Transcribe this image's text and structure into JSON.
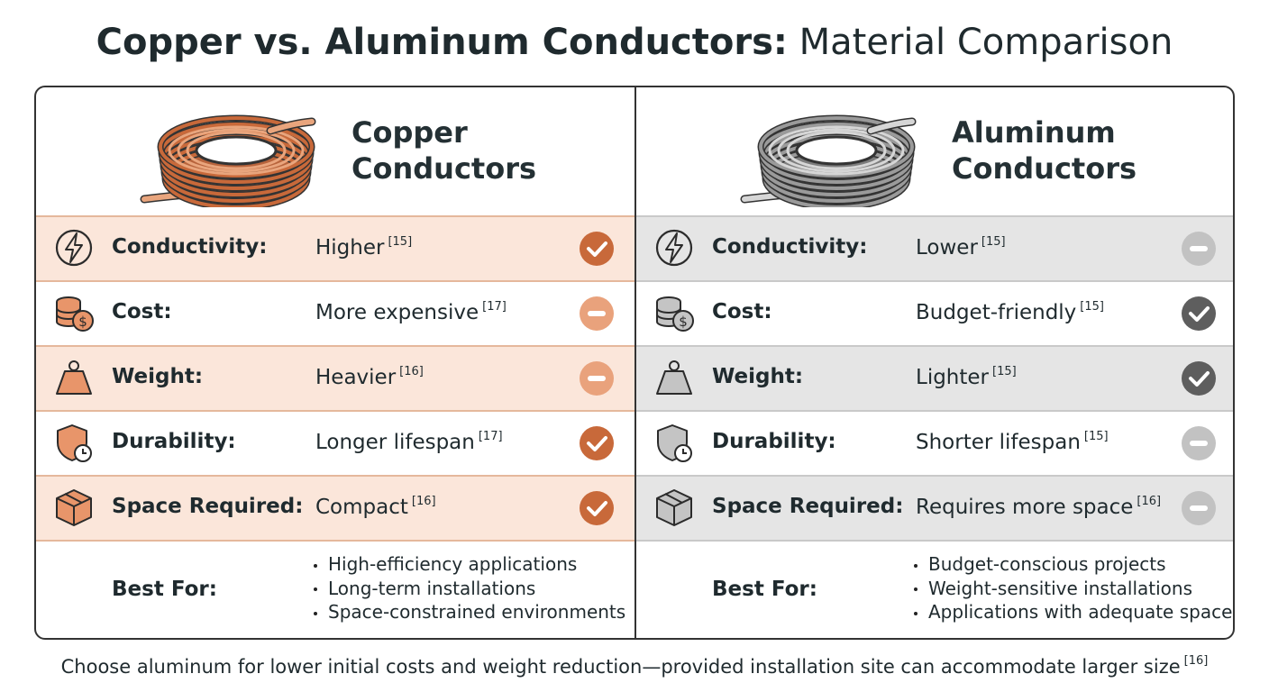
{
  "title": {
    "bold": "Copper vs. Aluminum Conductors:",
    "regular": "Material Comparison"
  },
  "columns": [
    {
      "heading": [
        "Copper",
        "Conductors"
      ],
      "rows": [
        {
          "label": "Conductivity:",
          "value": "Higher",
          "ref": "[15]"
        },
        {
          "label": "Cost:",
          "value": "More expensive",
          "ref": "[17]"
        },
        {
          "label": "Weight:",
          "value": "Heavier",
          "ref": "[16]"
        },
        {
          "label": "Durability:",
          "value": "Longer lifespan",
          "ref": "[17]"
        },
        {
          "label": "Space Required:",
          "value": "Compact",
          "ref": "[16]"
        }
      ],
      "best_for": {
        "label": "Best For:",
        "items": [
          "High-efficiency applications",
          "Long-term installations",
          "Space-constrained environments"
        ]
      }
    },
    {
      "heading": [
        "Aluminum",
        "Conductors"
      ],
      "rows": [
        {
          "label": "Conductivity:",
          "value": "Lower",
          "ref": "[15]"
        },
        {
          "label": "Cost:",
          "value": "Budget-friendly",
          "ref": "[15]"
        },
        {
          "label": "Weight:",
          "value": "Lighter",
          "ref": "[15]"
        },
        {
          "label": "Durability:",
          "value": "Shorter lifespan",
          "ref": "[15]"
        },
        {
          "label": "Space Required:",
          "value": "Requires more space",
          "ref": "[16]"
        }
      ],
      "best_for": {
        "label": "Best For:",
        "items": [
          "Budget-conscious projects",
          "Weight-sensitive installations",
          "Applications with adequate space"
        ]
      }
    }
  ],
  "footer": {
    "text": "Choose aluminum for lower initial costs and weight reduction—provided installation site can accommodate larger size",
    "ref": "[16]"
  }
}
